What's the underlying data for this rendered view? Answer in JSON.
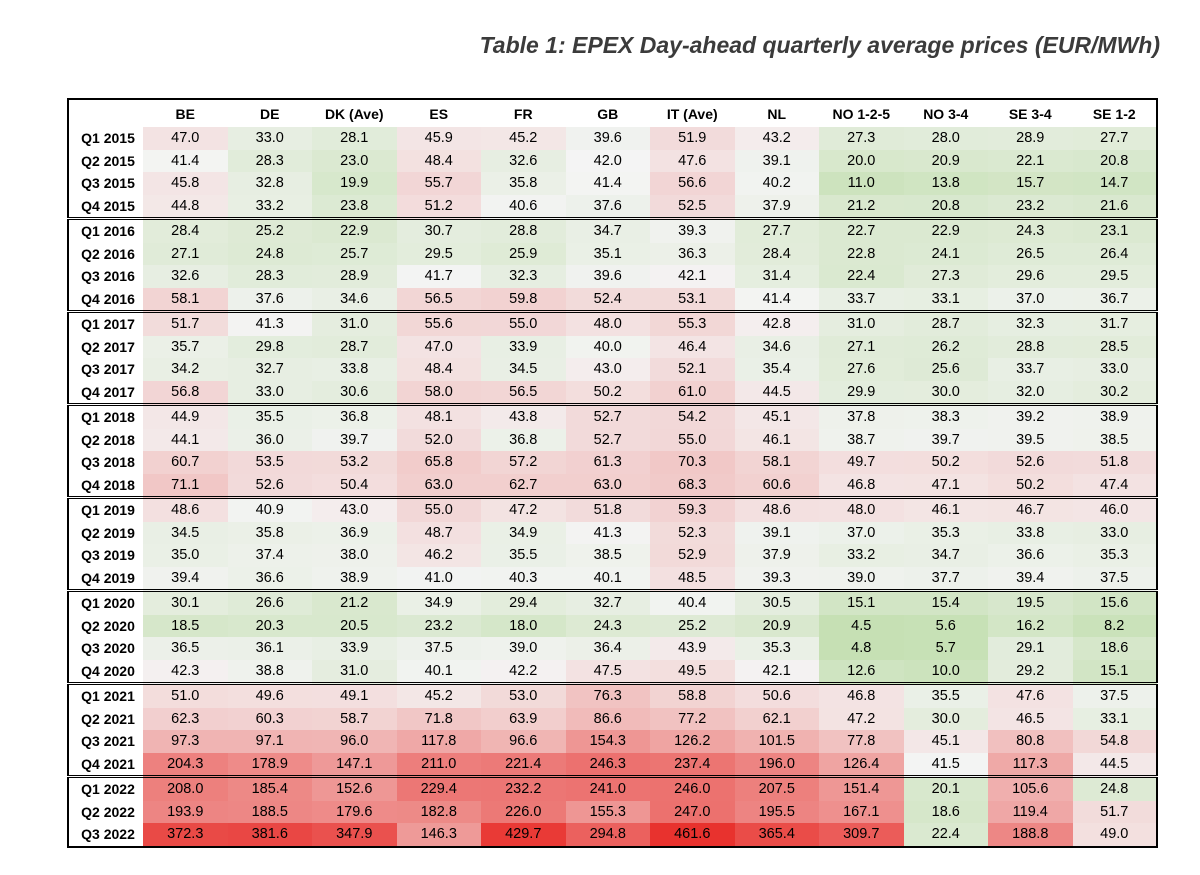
{
  "title": "Table 1: EPEX Day-ahead quarterly average prices (EUR/MWh)",
  "chart_data": {
    "type": "table",
    "title": "Table 1: EPEX Day-ahead quarterly average prices (EUR/MWh)",
    "columns": [
      "BE",
      "DE",
      "DK (Ave)",
      "ES",
      "FR",
      "GB",
      "IT (Ave)",
      "NL",
      "NO 1-2-5",
      "NO 3-4",
      "SE 3-4",
      "SE 1-2"
    ],
    "rows": [
      {
        "label": "Q1 2015",
        "values": [
          "47.0",
          "33.0",
          "28.1",
          "45.9",
          "45.2",
          "39.6",
          "51.9",
          "43.2",
          "27.3",
          "28.0",
          "28.9",
          "27.7"
        ]
      },
      {
        "label": "Q2 2015",
        "values": [
          "41.4",
          "28.3",
          "23.0",
          "48.4",
          "32.6",
          "42.0",
          "47.6",
          "39.1",
          "20.0",
          "20.9",
          "22.1",
          "20.8"
        ]
      },
      {
        "label": "Q3 2015",
        "values": [
          "45.8",
          "32.8",
          "19.9",
          "55.7",
          "35.8",
          "41.4",
          "56.6",
          "40.2",
          "11.0",
          "13.8",
          "15.7",
          "14.7"
        ]
      },
      {
        "label": "Q4 2015",
        "values": [
          "44.8",
          "33.2",
          "23.8",
          "51.2",
          "40.6",
          "37.6",
          "52.5",
          "37.9",
          "21.2",
          "20.8",
          "23.2",
          "21.6"
        ]
      },
      {
        "label": "Q1 2016",
        "values": [
          "28.4",
          "25.2",
          "22.9",
          "30.7",
          "28.8",
          "34.7",
          "39.3",
          "27.7",
          "22.7",
          "22.9",
          "24.3",
          "23.1"
        ]
      },
      {
        "label": "Q2 2016",
        "values": [
          "27.1",
          "24.8",
          "25.7",
          "29.5",
          "25.9",
          "35.1",
          "36.3",
          "28.4",
          "22.8",
          "24.1",
          "26.5",
          "26.4"
        ]
      },
      {
        "label": "Q3 2016",
        "values": [
          "32.6",
          "28.3",
          "28.9",
          "41.7",
          "32.3",
          "39.6",
          "42.1",
          "31.4",
          "22.4",
          "27.3",
          "29.6",
          "29.5"
        ]
      },
      {
        "label": "Q4 2016",
        "values": [
          "58.1",
          "37.6",
          "34.6",
          "56.5",
          "59.8",
          "52.4",
          "53.1",
          "41.4",
          "33.7",
          "33.1",
          "37.0",
          "36.7"
        ]
      },
      {
        "label": "Q1 2017",
        "values": [
          "51.7",
          "41.3",
          "31.0",
          "55.6",
          "55.0",
          "48.0",
          "55.3",
          "42.8",
          "31.0",
          "28.7",
          "32.3",
          "31.7"
        ]
      },
      {
        "label": "Q2 2017",
        "values": [
          "35.7",
          "29.8",
          "28.7",
          "47.0",
          "33.9",
          "40.0",
          "46.4",
          "34.6",
          "27.1",
          "26.2",
          "28.8",
          "28.5"
        ]
      },
      {
        "label": "Q3 2017",
        "values": [
          "34.2",
          "32.7",
          "33.8",
          "48.4",
          "34.5",
          "43.0",
          "52.1",
          "35.4",
          "27.6",
          "25.6",
          "33.7",
          "33.0"
        ]
      },
      {
        "label": "Q4 2017",
        "values": [
          "56.8",
          "33.0",
          "30.6",
          "58.0",
          "56.5",
          "50.2",
          "61.0",
          "44.5",
          "29.9",
          "30.0",
          "32.0",
          "30.2"
        ]
      },
      {
        "label": "Q1 2018",
        "values": [
          "44.9",
          "35.5",
          "36.8",
          "48.1",
          "43.8",
          "52.7",
          "54.2",
          "45.1",
          "37.8",
          "38.3",
          "39.2",
          "38.9"
        ]
      },
      {
        "label": "Q2 2018",
        "values": [
          "44.1",
          "36.0",
          "39.7",
          "52.0",
          "36.8",
          "52.7",
          "55.0",
          "46.1",
          "38.7",
          "39.7",
          "39.5",
          "38.5"
        ]
      },
      {
        "label": "Q3 2018",
        "values": [
          "60.7",
          "53.5",
          "53.2",
          "65.8",
          "57.2",
          "61.3",
          "70.3",
          "58.1",
          "49.7",
          "50.2",
          "52.6",
          "51.8"
        ]
      },
      {
        "label": "Q4 2018",
        "values": [
          "71.1",
          "52.6",
          "50.4",
          "63.0",
          "62.7",
          "63.0",
          "68.3",
          "60.6",
          "46.8",
          "47.1",
          "50.2",
          "47.4"
        ]
      },
      {
        "label": "Q1 2019",
        "values": [
          "48.6",
          "40.9",
          "43.0",
          "55.0",
          "47.2",
          "51.8",
          "59.3",
          "48.6",
          "48.0",
          "46.1",
          "46.7",
          "46.0"
        ]
      },
      {
        "label": "Q2 2019",
        "values": [
          "34.5",
          "35.8",
          "36.9",
          "48.7",
          "34.9",
          "41.3",
          "52.3",
          "39.1",
          "37.0",
          "35.3",
          "33.8",
          "33.0"
        ]
      },
      {
        "label": "Q3 2019",
        "values": [
          "35.0",
          "37.4",
          "38.0",
          "46.2",
          "35.5",
          "38.5",
          "52.9",
          "37.9",
          "33.2",
          "34.7",
          "36.6",
          "35.3"
        ]
      },
      {
        "label": "Q4 2019",
        "values": [
          "39.4",
          "36.6",
          "38.9",
          "41.0",
          "40.3",
          "40.1",
          "48.5",
          "39.3",
          "39.0",
          "37.7",
          "39.4",
          "37.5"
        ]
      },
      {
        "label": "Q1 2020",
        "values": [
          "30.1",
          "26.6",
          "21.2",
          "34.9",
          "29.4",
          "32.7",
          "40.4",
          "30.5",
          "15.1",
          "15.4",
          "19.5",
          "15.6"
        ]
      },
      {
        "label": "Q2 2020",
        "values": [
          "18.5",
          "20.3",
          "20.5",
          "23.2",
          "18.0",
          "24.3",
          "25.2",
          "20.9",
          "4.5",
          "5.6",
          "16.2",
          "8.2"
        ]
      },
      {
        "label": "Q3 2020",
        "values": [
          "36.5",
          "36.1",
          "33.9",
          "37.5",
          "39.0",
          "36.4",
          "43.9",
          "35.3",
          "4.8",
          "5.7",
          "29.1",
          "18.6"
        ]
      },
      {
        "label": "Q4 2020",
        "values": [
          "42.3",
          "38.8",
          "31.0",
          "40.1",
          "42.2",
          "47.5",
          "49.5",
          "42.1",
          "12.6",
          "10.0",
          "29.2",
          "15.1"
        ]
      },
      {
        "label": "Q1 2021",
        "values": [
          "51.0",
          "49.6",
          "49.1",
          "45.2",
          "53.0",
          "76.3",
          "58.8",
          "50.6",
          "46.8",
          "35.5",
          "47.6",
          "37.5"
        ]
      },
      {
        "label": "Q2 2021",
        "values": [
          "62.3",
          "60.3",
          "58.7",
          "71.8",
          "63.9",
          "86.6",
          "77.2",
          "62.1",
          "47.2",
          "30.0",
          "46.5",
          "33.1"
        ]
      },
      {
        "label": "Q3 2021",
        "values": [
          "97.3",
          "97.1",
          "96.0",
          "117.8",
          "96.6",
          "154.3",
          "126.2",
          "101.5",
          "77.8",
          "45.1",
          "80.8",
          "54.8"
        ]
      },
      {
        "label": "Q4 2021",
        "values": [
          "204.3",
          "178.9",
          "147.1",
          "211.0",
          "221.4",
          "246.3",
          "237.4",
          "196.0",
          "126.4",
          "41.5",
          "117.3",
          "44.5"
        ]
      },
      {
        "label": "Q1 2022",
        "values": [
          "208.0",
          "185.4",
          "152.6",
          "229.4",
          "232.2",
          "241.0",
          "246.0",
          "207.5",
          "151.4",
          "20.1",
          "105.6",
          "24.8"
        ]
      },
      {
        "label": "Q2 2022",
        "values": [
          "193.9",
          "188.5",
          "179.6",
          "182.8",
          "226.0",
          "155.3",
          "247.0",
          "195.5",
          "167.1",
          "18.6",
          "119.4",
          "51.7"
        ]
      },
      {
        "label": "Q3 2022",
        "values": [
          "372.3",
          "381.6",
          "347.9",
          "146.3",
          "429.7",
          "294.8",
          "461.6",
          "365.4",
          "309.7",
          "22.4",
          "188.8",
          "49.0"
        ]
      }
    ],
    "group_starts": [
      "Q1 2016",
      "Q1 2017",
      "Q1 2018",
      "Q1 2019",
      "Q1 2020",
      "Q1 2021",
      "Q1 2022"
    ],
    "color_scale": {
      "low": "#c6e0b4",
      "mid": "#f4f4f4",
      "high": "#e8322e"
    }
  }
}
